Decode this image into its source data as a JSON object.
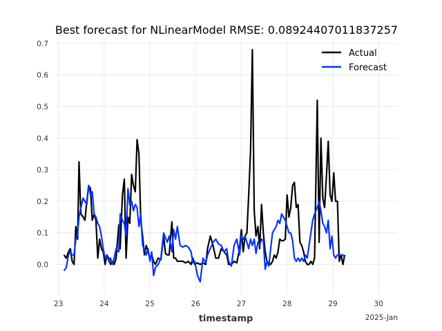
{
  "chart_data": {
    "type": "line",
    "title": "Best forecast for NLinearModel RMSE: 0.08924407011837257",
    "xlabel": "timestamp",
    "ylabel": "",
    "x_offset_label": "2025-Jan",
    "x_ticks": [
      23,
      24,
      25,
      26,
      27,
      28,
      29,
      30
    ],
    "y_ticks": [
      "0.0",
      "0.1",
      "0.2",
      "0.3",
      "0.4",
      "0.5",
      "0.6",
      "0.7"
    ],
    "xlim": [
      22.93,
      30.42
    ],
    "ylim": [
      -0.095,
      0.715
    ],
    "grid": true,
    "legend_position": "top-right",
    "series": [
      {
        "name": "Actual",
        "color": "#000000",
        "points": [
          [
            23.12,
            0.03
          ],
          [
            23.17,
            0.02
          ],
          [
            23.22,
            0.04
          ],
          [
            23.26,
            0.05
          ],
          [
            23.3,
            0.01
          ],
          [
            23.34,
            0.0
          ],
          [
            23.38,
            0.12
          ],
          [
            23.42,
            0.08
          ],
          [
            23.45,
            0.325
          ],
          [
            23.49,
            0.16
          ],
          [
            23.54,
            0.15
          ],
          [
            23.58,
            0.14
          ],
          [
            23.62,
            0.2
          ],
          [
            23.66,
            0.25
          ],
          [
            23.7,
            0.24
          ],
          [
            23.74,
            0.14
          ],
          [
            23.78,
            0.16
          ],
          [
            23.82,
            0.14
          ],
          [
            23.86,
            0.02
          ],
          [
            23.9,
            0.08
          ],
          [
            23.94,
            0.05
          ],
          [
            23.98,
            0.04
          ],
          [
            24.02,
            0.0
          ],
          [
            24.06,
            0.03
          ],
          [
            24.1,
            0.02
          ],
          [
            24.14,
            0.0
          ],
          [
            24.18,
            0.01
          ],
          [
            24.22,
            0.0
          ],
          [
            24.26,
            0.02
          ],
          [
            24.32,
            0.125
          ],
          [
            24.35,
            0.05
          ],
          [
            24.4,
            0.22
          ],
          [
            24.44,
            0.27
          ],
          [
            24.48,
            0.02
          ],
          [
            24.52,
            0.15
          ],
          [
            24.56,
            0.13
          ],
          [
            24.6,
            0.285
          ],
          [
            24.64,
            0.25
          ],
          [
            24.68,
            0.23
          ],
          [
            24.72,
            0.395
          ],
          [
            24.76,
            0.35
          ],
          [
            24.8,
            0.14
          ],
          [
            24.84,
            0.09
          ],
          [
            24.88,
            0.03
          ],
          [
            24.92,
            0.06
          ],
          [
            24.96,
            0.04
          ],
          [
            25.0,
            0.02
          ],
          [
            25.04,
            0.03
          ],
          [
            25.08,
            0.01
          ],
          [
            25.12,
            0.0
          ],
          [
            25.18,
            0.02
          ],
          [
            25.24,
            0.015
          ],
          [
            25.3,
            0.09
          ],
          [
            25.34,
            0.035
          ],
          [
            25.38,
            0.03
          ],
          [
            25.42,
            0.03
          ],
          [
            25.48,
            0.135
          ],
          [
            25.52,
            0.02
          ],
          [
            25.56,
            0.02
          ],
          [
            25.6,
            0.01
          ],
          [
            25.66,
            0.01
          ],
          [
            25.72,
            0.01
          ],
          [
            25.78,
            0.005
          ],
          [
            25.84,
            0.01
          ],
          [
            25.9,
            0.0
          ],
          [
            25.94,
            0.02
          ],
          [
            25.98,
            0.0
          ],
          [
            26.04,
            0.005
          ],
          [
            26.1,
            0.0
          ],
          [
            26.16,
            0.005
          ],
          [
            26.22,
            0.0
          ],
          [
            26.26,
            0.05
          ],
          [
            26.32,
            0.09
          ],
          [
            26.38,
            0.06
          ],
          [
            26.44,
            0.02
          ],
          [
            26.5,
            0.02
          ],
          [
            26.56,
            0.05
          ],
          [
            26.62,
            0.04
          ],
          [
            26.68,
            0.03
          ],
          [
            26.72,
            0.0
          ],
          [
            26.78,
            0.0
          ],
          [
            26.84,
            0.01
          ],
          [
            26.9,
            0.005
          ],
          [
            26.96,
            0.05
          ],
          [
            27.0,
            0.11
          ],
          [
            27.04,
            0.04
          ],
          [
            27.08,
            0.09
          ],
          [
            27.12,
            0.1
          ],
          [
            27.16,
            0.22
          ],
          [
            27.2,
            0.36
          ],
          [
            27.24,
            0.68
          ],
          [
            27.28,
            0.17
          ],
          [
            27.32,
            0.09
          ],
          [
            27.36,
            0.12
          ],
          [
            27.4,
            0.05
          ],
          [
            27.44,
            0.19
          ],
          [
            27.48,
            0.1
          ],
          [
            27.52,
            0.04
          ],
          [
            27.56,
            0.01
          ],
          [
            27.6,
            0.005
          ],
          [
            27.64,
            0.0
          ],
          [
            27.68,
            0.01
          ],
          [
            27.72,
            0.03
          ],
          [
            27.76,
            0.02
          ],
          [
            27.8,
            0.04
          ],
          [
            27.84,
            0.08
          ],
          [
            27.88,
            0.075
          ],
          [
            27.92,
            0.075
          ],
          [
            27.96,
            0.08
          ],
          [
            28.0,
            0.22
          ],
          [
            28.04,
            0.15
          ],
          [
            28.08,
            0.18
          ],
          [
            28.12,
            0.25
          ],
          [
            28.16,
            0.26
          ],
          [
            28.2,
            0.18
          ],
          [
            28.24,
            0.19
          ],
          [
            28.28,
            0.07
          ],
          [
            28.32,
            0.06
          ],
          [
            28.36,
            0.04
          ],
          [
            28.4,
            0.01
          ],
          [
            28.44,
            0.0
          ],
          [
            28.48,
            0.0
          ],
          [
            28.52,
            0.01
          ],
          [
            28.56,
            0.0
          ],
          [
            28.6,
            0.02
          ],
          [
            28.66,
            0.52
          ],
          [
            28.7,
            0.07
          ],
          [
            28.74,
            0.4
          ],
          [
            28.78,
            0.21
          ],
          [
            28.82,
            0.18
          ],
          [
            28.86,
            0.28
          ],
          [
            28.9,
            0.39
          ],
          [
            28.94,
            0.22
          ],
          [
            28.98,
            0.2
          ],
          [
            29.02,
            0.29
          ],
          [
            29.06,
            0.2
          ],
          [
            29.1,
            0.2
          ],
          [
            29.14,
            0.01
          ],
          [
            29.18,
            0.03
          ],
          [
            29.22,
            0.0
          ],
          [
            29.26,
            0.03
          ]
        ]
      },
      {
        "name": "Forecast",
        "color": "#0433ff",
        "points": [
          [
            23.12,
            -0.02
          ],
          [
            23.17,
            -0.01
          ],
          [
            23.22,
            0.03
          ],
          [
            23.26,
            0.04
          ],
          [
            23.3,
            0.03
          ],
          [
            23.34,
            0.03
          ],
          [
            23.38,
            0.08
          ],
          [
            23.42,
            0.1
          ],
          [
            23.45,
            0.15
          ],
          [
            23.49,
            0.18
          ],
          [
            23.54,
            0.21
          ],
          [
            23.58,
            0.2
          ],
          [
            23.62,
            0.19
          ],
          [
            23.66,
            0.25
          ],
          [
            23.7,
            0.22
          ],
          [
            23.74,
            0.23
          ],
          [
            23.78,
            0.16
          ],
          [
            23.82,
            0.15
          ],
          [
            23.86,
            0.13
          ],
          [
            23.9,
            0.12
          ],
          [
            23.94,
            0.09
          ],
          [
            23.98,
            0.05
          ],
          [
            24.02,
            0.02
          ],
          [
            24.06,
            0.03
          ],
          [
            24.1,
            0.01
          ],
          [
            24.14,
            0.02
          ],
          [
            24.18,
            0.0
          ],
          [
            24.22,
            0.02
          ],
          [
            24.26,
            0.05
          ],
          [
            24.32,
            0.04
          ],
          [
            24.35,
            0.16
          ],
          [
            24.4,
            0.14
          ],
          [
            24.44,
            0.13
          ],
          [
            24.48,
            0.09
          ],
          [
            24.52,
            0.24
          ],
          [
            24.56,
            0.19
          ],
          [
            24.6,
            0.2
          ],
          [
            24.64,
            0.17
          ],
          [
            24.68,
            0.19
          ],
          [
            24.72,
            0.18
          ],
          [
            24.76,
            0.12
          ],
          [
            24.8,
            0.16
          ],
          [
            24.84,
            0.06
          ],
          [
            24.88,
            0.05
          ],
          [
            24.92,
            0.03
          ],
          [
            24.96,
            0.05
          ],
          [
            25.0,
            0.01
          ],
          [
            25.04,
            0.04
          ],
          [
            25.08,
            -0.035
          ],
          [
            25.12,
            -0.01
          ],
          [
            25.18,
            0.0
          ],
          [
            25.24,
            0.02
          ],
          [
            25.3,
            0.1
          ],
          [
            25.34,
            0.085
          ],
          [
            25.38,
            0.07
          ],
          [
            25.42,
            0.09
          ],
          [
            25.48,
            0.04
          ],
          [
            25.52,
            0.11
          ],
          [
            25.56,
            0.08
          ],
          [
            25.6,
            0.12
          ],
          [
            25.66,
            0.06
          ],
          [
            25.72,
            0.055
          ],
          [
            25.78,
            0.06
          ],
          [
            25.84,
            0.055
          ],
          [
            25.9,
            0.04
          ],
          [
            25.94,
            0.005
          ],
          [
            25.98,
            0.01
          ],
          [
            26.04,
            -0.035
          ],
          [
            26.1,
            -0.055
          ],
          [
            26.16,
            0.02
          ],
          [
            26.22,
            0.005
          ],
          [
            26.26,
            0.03
          ],
          [
            26.32,
            0.05
          ],
          [
            26.38,
            0.07
          ],
          [
            26.44,
            0.08
          ],
          [
            26.5,
            0.065
          ],
          [
            26.56,
            0.06
          ],
          [
            26.62,
            0.04
          ],
          [
            26.68,
            0.05
          ],
          [
            26.72,
            0.01
          ],
          [
            26.78,
            -0.005
          ],
          [
            26.84,
            0.06
          ],
          [
            26.9,
            0.08
          ],
          [
            26.96,
            0.03
          ],
          [
            27.0,
            0.09
          ],
          [
            27.04,
            0.08
          ],
          [
            27.08,
            0.09
          ],
          [
            27.12,
            0.07
          ],
          [
            27.16,
            0.05
          ],
          [
            27.2,
            0.08
          ],
          [
            27.24,
            0.06
          ],
          [
            27.28,
            0.08
          ],
          [
            27.32,
            0.035
          ],
          [
            27.36,
            0.07
          ],
          [
            27.4,
            0.06
          ],
          [
            27.44,
            0.08
          ],
          [
            27.48,
            0.075
          ],
          [
            27.52,
            -0.015
          ],
          [
            27.56,
            0.01
          ],
          [
            27.6,
            -0.005
          ],
          [
            27.64,
            0.05
          ],
          [
            27.68,
            0.1
          ],
          [
            27.72,
            0.11
          ],
          [
            27.76,
            0.12
          ],
          [
            27.8,
            0.14
          ],
          [
            27.84,
            0.13
          ],
          [
            27.88,
            0.16
          ],
          [
            27.92,
            0.15
          ],
          [
            27.96,
            0.14
          ],
          [
            28.0,
            0.12
          ],
          [
            28.04,
            0.1
          ],
          [
            28.08,
            0.1
          ],
          [
            28.12,
            0.075
          ],
          [
            28.16,
            0.02
          ],
          [
            28.2,
            0.01
          ],
          [
            28.24,
            0.02
          ],
          [
            28.28,
            0.01
          ],
          [
            28.32,
            0.02
          ],
          [
            28.36,
            0.01
          ],
          [
            28.4,
            0.03
          ],
          [
            28.44,
            0.02
          ],
          [
            28.48,
            0.06
          ],
          [
            28.52,
            0.1
          ],
          [
            28.56,
            0.14
          ],
          [
            28.6,
            0.16
          ],
          [
            28.66,
            0.18
          ],
          [
            28.7,
            0.2
          ],
          [
            28.74,
            0.17
          ],
          [
            28.78,
            0.13
          ],
          [
            28.82,
            0.12
          ],
          [
            28.86,
            0.1
          ],
          [
            28.9,
            0.14
          ],
          [
            28.94,
            0.05
          ],
          [
            28.98,
            0.09
          ],
          [
            29.02,
            0.03
          ],
          [
            29.06,
            0.02
          ],
          [
            29.1,
            0.03
          ],
          [
            29.14,
            0.03
          ],
          [
            29.18,
            0.03
          ],
          [
            29.22,
            0.03
          ],
          [
            29.26,
            0.02
          ]
        ]
      }
    ]
  }
}
